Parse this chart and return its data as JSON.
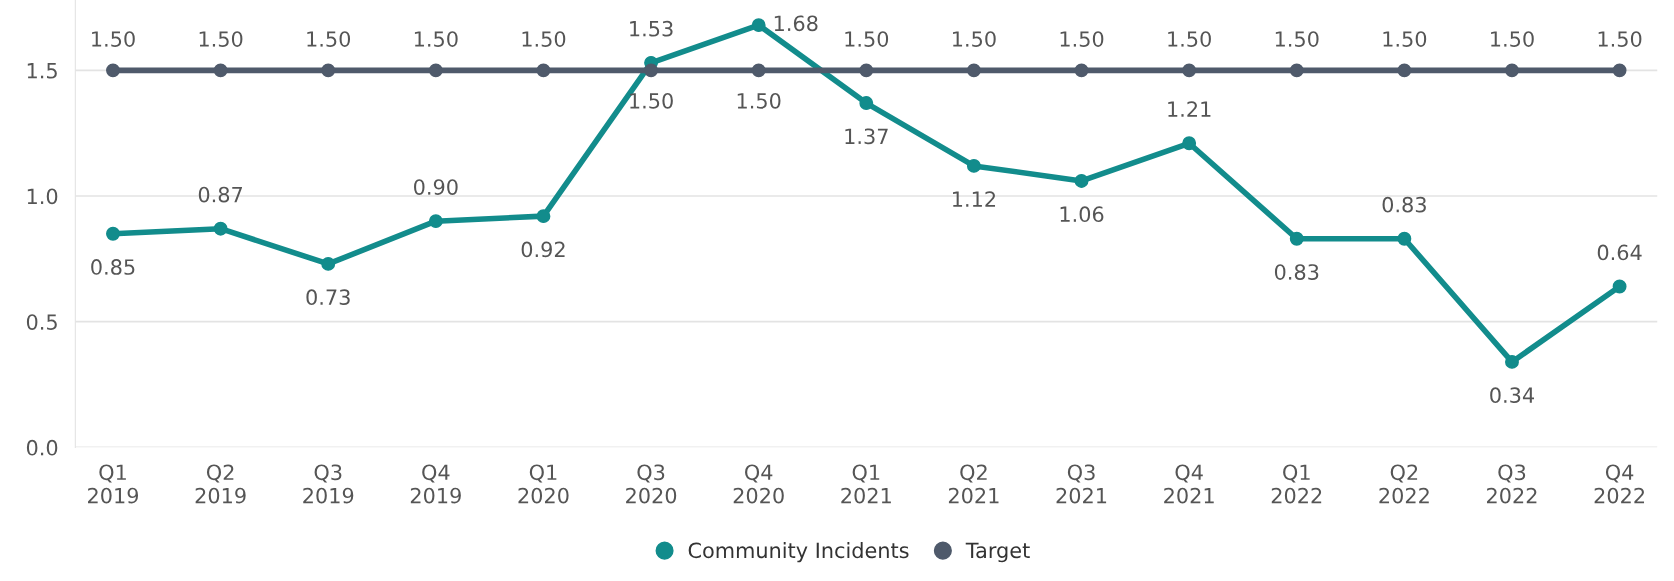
{
  "chart_data": {
    "type": "line",
    "categories": [
      "Q1\n2019",
      "Q2\n2019",
      "Q3\n2019",
      "Q4\n2019",
      "Q1\n2020",
      "Q3\n2020",
      "Q4\n2020",
      "Q1\n2021",
      "Q2\n2021",
      "Q3\n2021",
      "Q4\n2021",
      "Q1\n2022",
      "Q2\n2022",
      "Q3\n2022",
      "Q4\n2022"
    ],
    "series": [
      {
        "name": "Community Incidents",
        "color": "#128c8c",
        "values": [
          0.85,
          0.87,
          0.73,
          0.9,
          0.92,
          1.53,
          1.68,
          1.37,
          1.12,
          1.06,
          1.21,
          0.83,
          0.83,
          0.34,
          0.64
        ],
        "value_labels": [
          "0.85",
          "0.87",
          "0.73",
          "0.90",
          "0.92",
          "1.53",
          "1.68",
          "1.37",
          "1.12",
          "1.06",
          "1.21",
          "0.83",
          "0.83",
          "0.34",
          "0.64"
        ]
      },
      {
        "name": "Target",
        "color": "#4f5a6b",
        "values": [
          1.5,
          1.5,
          1.5,
          1.5,
          1.5,
          1.5,
          1.5,
          1.5,
          1.5,
          1.5,
          1.5,
          1.5,
          1.5,
          1.5,
          1.5
        ],
        "value_labels": [
          "1.50",
          "1.50",
          "1.50",
          "1.50",
          "1.50",
          "1.50",
          "1.50",
          "1.50",
          "1.50",
          "1.50",
          "1.50",
          "1.50",
          "1.50",
          "1.50",
          "1.50"
        ]
      }
    ],
    "ylim": [
      0,
      1.78
    ],
    "yticks": [
      {
        "value": 0,
        "label": "0.0"
      },
      {
        "value": 0.5,
        "label": "0.5"
      },
      {
        "value": 1.0,
        "label": "1.0"
      },
      {
        "value": 1.5,
        "label": "1.5"
      }
    ],
    "grid": "y",
    "legend": "bottom",
    "marker": "circle",
    "line_style": "solid"
  }
}
